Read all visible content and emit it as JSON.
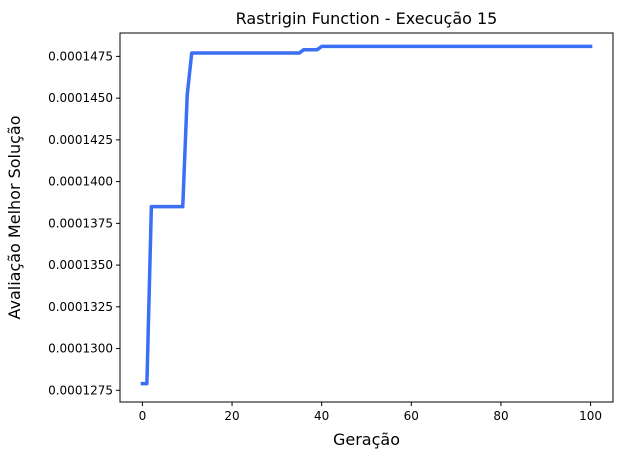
{
  "chart_data": {
    "type": "line",
    "title": "Rastrigin Function - Execução 15",
    "xlabel": "Geração",
    "ylabel": "Avaliação Melhor Solução",
    "xlim": [
      -5,
      105
    ],
    "ylim": [
      0.0001268,
      0.0001489
    ],
    "xticks": [
      0,
      20,
      40,
      60,
      80,
      100
    ],
    "xtick_labels": [
      "0",
      "20",
      "40",
      "60",
      "80",
      "100"
    ],
    "yticks": [
      0.0001275,
      0.00013,
      0.0001325,
      0.000135,
      0.0001375,
      0.00014,
      0.0001425,
      0.000145,
      0.0001475
    ],
    "ytick_labels": [
      "0.0001275",
      "0.0001300",
      "0.0001325",
      "0.0001350",
      "0.0001375",
      "0.0001400",
      "0.0001425",
      "0.0001450",
      "0.0001475"
    ],
    "grid": false,
    "legend": "none",
    "series": [
      {
        "color": "#3b6ff5",
        "x": [
          0,
          1,
          2,
          3,
          4,
          5,
          6,
          7,
          8,
          9,
          10,
          11,
          12,
          15,
          20,
          25,
          30,
          35,
          36,
          37,
          38,
          39,
          40,
          45,
          50,
          60,
          70,
          80,
          90,
          100
        ],
        "y": [
          0.0001279,
          0.0001279,
          0.0001385,
          0.0001385,
          0.0001385,
          0.0001385,
          0.0001385,
          0.0001385,
          0.0001385,
          0.0001385,
          0.0001452,
          0.0001477,
          0.0001477,
          0.0001477,
          0.0001477,
          0.0001477,
          0.0001477,
          0.0001477,
          0.0001479,
          0.0001479,
          0.0001479,
          0.0001479,
          0.0001481,
          0.0001481,
          0.0001481,
          0.0001481,
          0.0001481,
          0.0001481,
          0.0001481,
          0.0001481
        ]
      }
    ]
  }
}
